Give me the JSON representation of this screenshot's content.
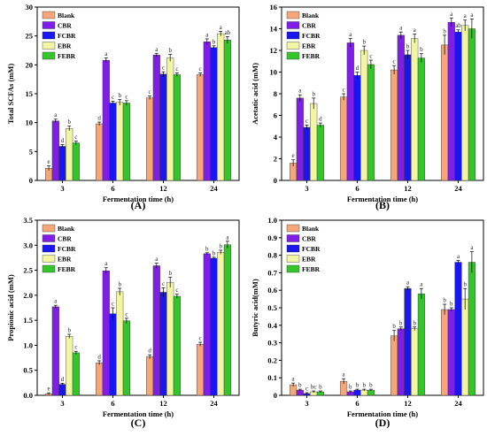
{
  "colors": {
    "Blank": "#f6a77a",
    "CBR": "#7f1ee6",
    "FCBR": "#1a17ee",
    "EBR": "#f2f6a2",
    "FEBR": "#33c52a"
  },
  "legend": [
    "Blank",
    "CBR",
    "FCBR",
    "EBR",
    "FEBR"
  ],
  "chart_data": [
    {
      "type": "bar",
      "panel_label": "(A)",
      "ylabel": "Total SCFAs (mM)",
      "xlabel": "Fermentation time (h)",
      "ylim": [
        0,
        30
      ],
      "yticks": [
        0,
        5,
        10,
        15,
        20,
        25,
        30
      ],
      "ytick_labels": [
        "0",
        "5",
        "10",
        "15",
        "20",
        "25",
        "30"
      ],
      "categories": [
        "3",
        "6",
        "12",
        "24"
      ],
      "series": [
        {
          "name": "Blank",
          "values": [
            2.1,
            9.8,
            14.3,
            18.3
          ],
          "errors": [
            0.4,
            0.3,
            0.3,
            0.3
          ],
          "letters": [
            "e",
            "d",
            "c",
            "c"
          ]
        },
        {
          "name": "CBR",
          "values": [
            10.3,
            20.8,
            21.7,
            24.0
          ],
          "errors": [
            0.3,
            0.4,
            0.3,
            0.5
          ],
          "letters": [
            "a",
            "a",
            "a",
            "a"
          ]
        },
        {
          "name": "FCBR",
          "values": [
            5.9,
            13.4,
            18.4,
            23.0
          ],
          "errors": [
            0.3,
            0.3,
            0.4,
            0.3
          ],
          "letters": [
            "d",
            "c",
            "c",
            "b"
          ]
        },
        {
          "name": "EBR",
          "values": [
            9.0,
            13.5,
            21.2,
            25.4
          ],
          "errors": [
            0.4,
            0.5,
            0.6,
            0.4
          ],
          "letters": [
            "b",
            "b",
            "b",
            "a"
          ]
        },
        {
          "name": "FEBR",
          "values": [
            6.5,
            13.4,
            18.3,
            24.3
          ],
          "errors": [
            0.3,
            0.4,
            0.3,
            0.6
          ],
          "letters": [
            "c",
            "c",
            "c",
            "ab"
          ]
        }
      ]
    },
    {
      "type": "bar",
      "panel_label": "(B)",
      "ylabel": "Acetatic acid (mM)",
      "xlabel": "Fermentation time (h)",
      "ylim": [
        0,
        16
      ],
      "yticks": [
        0,
        2,
        4,
        6,
        8,
        10,
        12,
        14,
        16
      ],
      "ytick_labels": [
        "0",
        "2",
        "4",
        "6",
        "8",
        "10",
        "12",
        "14",
        "16"
      ],
      "categories": [
        "3",
        "6",
        "12",
        "24"
      ],
      "series": [
        {
          "name": "Blank",
          "values": [
            1.6,
            7.7,
            10.2,
            12.5
          ],
          "errors": [
            0.3,
            0.3,
            0.4,
            0.9
          ],
          "letters": [
            "e",
            "c",
            "c",
            "b"
          ]
        },
        {
          "name": "CBR",
          "values": [
            7.6,
            12.7,
            13.4,
            14.6
          ],
          "errors": [
            0.3,
            0.4,
            0.3,
            0.4
          ],
          "letters": [
            "a",
            "a",
            "a",
            "a"
          ]
        },
        {
          "name": "FCBR",
          "values": [
            4.9,
            9.7,
            11.6,
            13.7
          ],
          "errors": [
            0.2,
            0.3,
            0.4,
            0.2
          ],
          "letters": [
            "c",
            "d",
            "b",
            "ab"
          ]
        },
        {
          "name": "EBR",
          "values": [
            7.1,
            12.0,
            13.1,
            14.3
          ],
          "errors": [
            0.5,
            0.4,
            0.4,
            0.5
          ],
          "letters": [
            "b",
            "b",
            "a",
            "a"
          ]
        },
        {
          "name": "FEBR",
          "values": [
            5.1,
            10.7,
            11.3,
            14.0
          ],
          "errors": [
            0.2,
            0.4,
            0.4,
            0.9
          ],
          "letters": [
            "d",
            "c",
            "b",
            "a"
          ]
        }
      ]
    },
    {
      "type": "bar",
      "panel_label": "(C)",
      "ylabel": "Propionic acid (mM)",
      "xlabel": "Fermentation time (h)",
      "ylim": [
        0,
        3.5
      ],
      "yticks": [
        0,
        0.5,
        1.0,
        1.5,
        2.0,
        2.5,
        3.0,
        3.5
      ],
      "ytick_labels": [
        "0.0",
        "0.5",
        "1.0",
        "1.5",
        "2.0",
        "2.5",
        "3.0",
        "3.5"
      ],
      "categories": [
        "3",
        "6",
        "12",
        "24"
      ],
      "series": [
        {
          "name": "Blank",
          "values": [
            0.03,
            0.65,
            0.77,
            1.02
          ],
          "errors": [
            0.02,
            0.04,
            0.04,
            0.04
          ],
          "letters": [
            "e",
            "d",
            "d",
            "c"
          ]
        },
        {
          "name": "CBR",
          "values": [
            1.77,
            2.49,
            2.59,
            2.83
          ],
          "errors": [
            0.03,
            0.06,
            0.05,
            0.02
          ],
          "letters": [
            "a",
            "a",
            "a",
            "b"
          ]
        },
        {
          "name": "FCBR",
          "values": [
            0.22,
            1.63,
            2.06,
            2.74
          ],
          "errors": [
            0.02,
            0.12,
            0.09,
            0.02
          ],
          "letters": [
            "d",
            "c",
            "c",
            "b"
          ]
        },
        {
          "name": "EBR",
          "values": [
            1.18,
            2.07,
            2.26,
            2.86
          ],
          "errors": [
            0.04,
            0.07,
            0.1,
            0.04
          ],
          "letters": [
            "b",
            "b",
            "b",
            "b"
          ]
        },
        {
          "name": "FEBR",
          "values": [
            0.85,
            1.49,
            1.98,
            3.01
          ],
          "errors": [
            0.03,
            0.05,
            0.04,
            0.07
          ],
          "letters": [
            "c",
            "c",
            "c",
            "a"
          ]
        }
      ]
    },
    {
      "type": "bar",
      "panel_label": "(D)",
      "ylabel": "Butyric acid(mM)",
      "xlabel": "Fermentation time (h)",
      "ylim": [
        0,
        1.0
      ],
      "yticks": [
        0,
        0.1,
        0.2,
        0.3,
        0.4,
        0.5,
        0.6,
        0.7,
        0.8,
        0.9,
        1.0
      ],
      "ytick_labels": [
        "0",
        "0.1",
        "0.2",
        "0.3",
        "0.4",
        "0.5",
        "0.6",
        "0.7",
        "0.8",
        "0.9",
        "1.0"
      ],
      "categories": [
        "3",
        "6",
        "12",
        "24"
      ],
      "series": [
        {
          "name": "Blank",
          "values": [
            0.06,
            0.08,
            0.34,
            0.49
          ],
          "errors": [
            0.01,
            0.015,
            0.03,
            0.03
          ],
          "letters": [
            "a",
            "a",
            "b",
            "b"
          ]
        },
        {
          "name": "CBR",
          "values": [
            0.03,
            0.02,
            0.38,
            0.49
          ],
          "errors": [
            0.005,
            0.005,
            0.01,
            0.01
          ],
          "letters": [
            "b",
            "b",
            "b",
            "b"
          ]
        },
        {
          "name": "FCBR",
          "values": [
            0.01,
            0.03,
            0.61,
            0.76
          ],
          "errors": [
            0.005,
            0.005,
            0.01,
            0.01
          ],
          "letters": [
            "c",
            "b",
            "a",
            "a"
          ]
        },
        {
          "name": "EBR",
          "values": [
            0.02,
            0.03,
            0.38,
            0.55
          ],
          "errors": [
            0.005,
            0.005,
            0.01,
            0.06
          ],
          "letters": [
            "bc",
            "b",
            "b",
            "b"
          ]
        },
        {
          "name": "FEBR",
          "values": [
            0.02,
            0.03,
            0.58,
            0.76
          ],
          "errors": [
            0.005,
            0.005,
            0.03,
            0.06
          ],
          "letters": [
            "b",
            "b",
            "a",
            "a"
          ]
        }
      ]
    }
  ]
}
